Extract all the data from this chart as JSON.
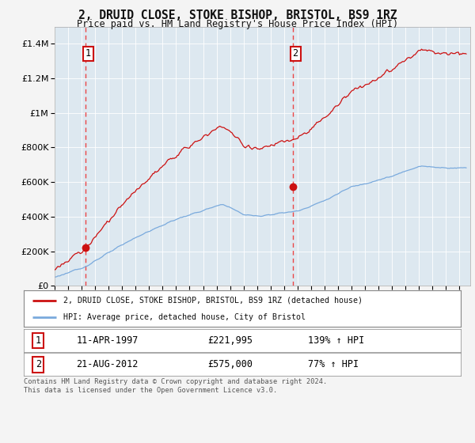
{
  "title": "2, DRUID CLOSE, STOKE BISHOP, BRISTOL, BS9 1RZ",
  "subtitle": "Price paid vs. HM Land Registry's House Price Index (HPI)",
  "legend_line1": "2, DRUID CLOSE, STOKE BISHOP, BRISTOL, BS9 1RZ (detached house)",
  "legend_line2": "HPI: Average price, detached house, City of Bristol",
  "table_row1_num": "1",
  "table_row1_date": "11-APR-1997",
  "table_row1_price": "£221,995",
  "table_row1_hpi": "139% ↑ HPI",
  "table_row2_num": "2",
  "table_row2_date": "21-AUG-2012",
  "table_row2_price": "£575,000",
  "table_row2_hpi": "77% ↑ HPI",
  "footer": "Contains HM Land Registry data © Crown copyright and database right 2024.\nThis data is licensed under the Open Government Licence v3.0.",
  "hpi_color": "#7aaadd",
  "price_color": "#cc1111",
  "marker_color": "#cc1111",
  "vline_color": "#ee3333",
  "fig_bg": "#f4f4f4",
  "plot_bg": "#dde8f0",
  "grid_color": "#ffffff",
  "ylim_max": 1500000,
  "xlim_min": 1995.0,
  "xlim_max": 2025.8,
  "sale1_year": 1997.28,
  "sale1_price": 221995,
  "sale2_year": 2012.64,
  "sale2_price": 575000
}
